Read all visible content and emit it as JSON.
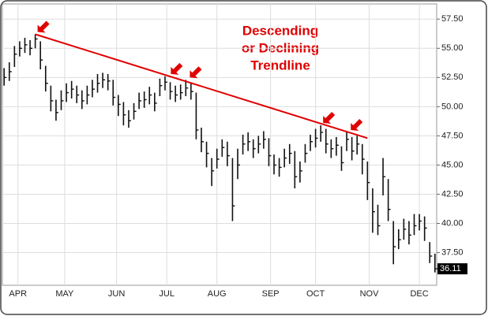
{
  "chart_data": {
    "type": "ohlc",
    "annotation": [
      "Descending",
      "or Declining",
      "Trendline"
    ],
    "x": [
      -3,
      0,
      3,
      6,
      9,
      12,
      15,
      18,
      21,
      24,
      27,
      30,
      33,
      36,
      39,
      42,
      45,
      48,
      51,
      54,
      57,
      60,
      63,
      66,
      69,
      72,
      75,
      78,
      81,
      84,
      87,
      90,
      93,
      96,
      99,
      102,
      105,
      108,
      111,
      114,
      117,
      120,
      123,
      126,
      129,
      132,
      135,
      138,
      141,
      144,
      147,
      150,
      153,
      156,
      159,
      162,
      165,
      168,
      171,
      174,
      177,
      180,
      183,
      186,
      189,
      192,
      195,
      198,
      201,
      204,
      207,
      210,
      213,
      216,
      219,
      222,
      225,
      228,
      231,
      234,
      237,
      240,
      243,
      246
    ],
    "series": [
      {
        "color": "#111111",
        "high": [
          53.3,
          53.8,
          55.2,
          55.6,
          55.9,
          55.7,
          56.2,
          55.6,
          53.5,
          51.8,
          50.6,
          51.4,
          52,
          52.2,
          51.8,
          51.4,
          51.8,
          52.3,
          52.8,
          52.9,
          52.8,
          52.3,
          51,
          50.4,
          49.7,
          50.3,
          51.2,
          51.3,
          51.7,
          51.2,
          52.4,
          52.6,
          52.1,
          51.8,
          51.9,
          52.3,
          52,
          51.2,
          48.2,
          47,
          45.6,
          46.4,
          47.2,
          47,
          45.6,
          46.4,
          47.6,
          47.8,
          47.2,
          47.5,
          47.9,
          47.3,
          45.9,
          45.6,
          46.4,
          46.8,
          46.2,
          45.3,
          46.8,
          47.6,
          48.1,
          48.4,
          48.1,
          47.2,
          47.4,
          46.6,
          47.8,
          47.4,
          47.5,
          46.8,
          45.3,
          43,
          41.6,
          45.6,
          43.8,
          40.2,
          39.5,
          40.4,
          40.2,
          40.8,
          40.8,
          40.6,
          38.4,
          37.4
        ],
        "low": [
          51.8,
          52.2,
          53.4,
          54.3,
          54.6,
          54.4,
          55,
          53.2,
          51.3,
          49.6,
          48.8,
          49.7,
          50.4,
          50.7,
          50.3,
          49.8,
          50.2,
          50.8,
          51.2,
          51.6,
          51.4,
          50.1,
          49.2,
          48.4,
          48.2,
          48.9,
          49.8,
          49.9,
          50.2,
          49.6,
          50.9,
          51.4,
          50.6,
          50.4,
          50.6,
          50.9,
          50.6,
          47.2,
          46.1,
          44.8,
          43.2,
          44.7,
          45.7,
          44.9,
          40.2,
          43.8,
          45.9,
          46.2,
          45.6,
          46,
          46.4,
          44.9,
          44.2,
          44,
          44.8,
          45.1,
          43,
          43.5,
          45.2,
          46.2,
          46.5,
          47,
          46,
          45.6,
          45.8,
          44.5,
          46.2,
          45.4,
          45.9,
          44.2,
          42,
          39.2,
          39,
          42.4,
          40.2,
          36.5,
          37.8,
          38.6,
          38.2,
          39,
          39.4,
          38.5,
          36.6,
          35.8
        ],
        "close": [
          52.5,
          53,
          54.5,
          55,
          55.3,
          55,
          55.8,
          54,
          52,
          50.5,
          49.5,
          50.5,
          51.2,
          51.5,
          51,
          50.5,
          51,
          51.5,
          52,
          52.3,
          52.2,
          50.8,
          50.2,
          49.3,
          48.8,
          49.6,
          50.5,
          50.6,
          51,
          50.3,
          51.8,
          52.1,
          51.3,
          51,
          51.2,
          51.6,
          51.3,
          48,
          47,
          46,
          44.5,
          45.5,
          46.5,
          45.8,
          41.5,
          45,
          46.8,
          47,
          46.4,
          46.8,
          47.2,
          45.8,
          45,
          44.8,
          45.6,
          46,
          44,
          44.5,
          46,
          47,
          47.3,
          47.8,
          46.8,
          46.4,
          46.7,
          45.2,
          47.2,
          46.2,
          46.8,
          45.5,
          43.5,
          41,
          39.8,
          44,
          41.2,
          38,
          38.6,
          39.5,
          39,
          39.8,
          40.2,
          39.6,
          37.2,
          36.11
        ]
      }
    ],
    "trendline": {
      "x": [
        15,
        207
      ],
      "y": [
        56.2,
        47.3
      ],
      "color": "#e00000"
    },
    "touch_points": {
      "x": [
        15,
        92,
        103,
        180,
        196
      ],
      "y": [
        56.2,
        52.6,
        52.3,
        48.4,
        47.8
      ],
      "color": "#e00000"
    },
    "xlim": [
      -4,
      247
    ],
    "xticks": [
      {
        "value": 5,
        "label": "APR"
      },
      {
        "value": 32,
        "label": "MAY"
      },
      {
        "value": 62,
        "label": "JUN"
      },
      {
        "value": 91,
        "label": "JUL"
      },
      {
        "value": 120,
        "label": "AUG"
      },
      {
        "value": 151,
        "label": "SEP"
      },
      {
        "value": 177,
        "label": "OCT"
      },
      {
        "value": 208,
        "label": "NOV"
      },
      {
        "value": 237,
        "label": "DEC"
      }
    ],
    "ylim": [
      34.7,
      58.8
    ],
    "yticks": [
      {
        "value": 37.5,
        "label": "37.50"
      },
      {
        "value": 40,
        "label": "40.00"
      },
      {
        "value": 42.5,
        "label": "42.50"
      },
      {
        "value": 45,
        "label": "45.00"
      },
      {
        "value": 47.5,
        "label": "47.50"
      },
      {
        "value": 50,
        "label": "50.00"
      },
      {
        "value": 52.5,
        "label": "52.50"
      },
      {
        "value": 55,
        "label": "55.00"
      },
      {
        "value": 57.5,
        "label": "57.50"
      }
    ],
    "grid": true
  }
}
